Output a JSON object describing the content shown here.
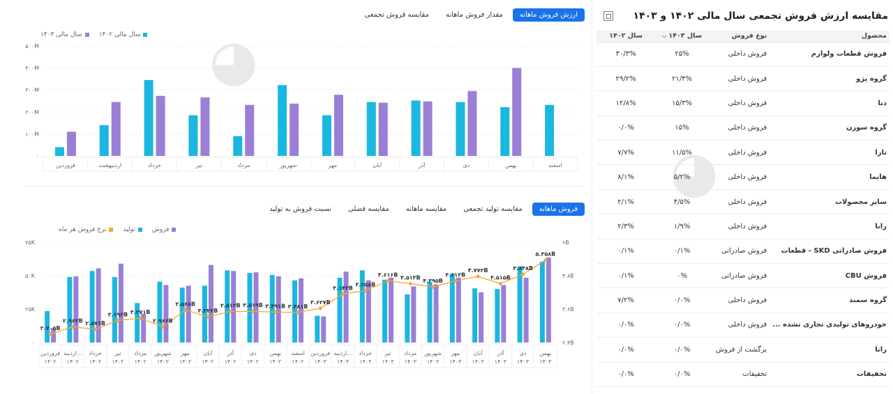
{
  "title": "مقایسه ارزش فروش تجمعی سال مالی ۱۴۰۲ و ۱۴۰۳",
  "top_tabs": [
    "ارزش فروش ماهانه",
    "مقدار فروش ماهانه",
    "مقایسه فروش تجمعی"
  ],
  "bottom_tabs": [
    "فروش ماهانه",
    "مقایسه تولید تجمعی",
    "مقایسه ماهانه",
    "مقایسه فصلی",
    "نسبت فروش به تولید"
  ],
  "table": {
    "headers": {
      "product": "محصول",
      "type": "نوع فروش",
      "y1403": "سال ۱۴۰۳",
      "y1402": "سال ۱۴۰۲"
    },
    "rows": [
      {
        "product": "فروش قطعات ولوازم",
        "type": "فروش داخلی",
        "y1403": "۲۵%",
        "y1402": "۳۰/۳%"
      },
      {
        "product": "گروه پژو",
        "type": "فروش داخلی",
        "y1403": "۲۱/۴%",
        "y1402": "۲۹/۲%"
      },
      {
        "product": "دنا",
        "type": "فروش داخلی",
        "y1403": "۱۵/۳%",
        "y1402": "۱۲/۸%"
      },
      {
        "product": "گروه سورن",
        "type": "فروش داخلی",
        "y1403": "۱۵%",
        "y1402": "۰/۰%"
      },
      {
        "product": "تارا",
        "type": "فروش داخلی",
        "y1403": "۱۱/۵%",
        "y1402": "۷/۷%"
      },
      {
        "product": "هایما",
        "type": "فروش داخلی",
        "y1403": "۵/۲%",
        "y1402": "۸/۱%"
      },
      {
        "product": "سایر محصولات",
        "type": "فروش داخلی",
        "y1403": "۴/۵%",
        "y1402": "۲/۱%"
      },
      {
        "product": "رانا",
        "type": "فروش داخلی",
        "y1403": "۱/۹%",
        "y1402": "۲/۳%"
      },
      {
        "product": "فروش صادراتی SKD - قطعات",
        "type": "فروش صادراتی",
        "y1403": "۰/۱%",
        "y1402": "۰/۱%"
      },
      {
        "product": "فروش CBU",
        "type": "فروش صادراتی",
        "y1403": "۰%",
        "y1402": "۰/۱%"
      },
      {
        "product": "گروه سمند",
        "type": "فروش داخلی",
        "y1403": "۰/۰%",
        "y1402": "۷/۲%"
      },
      {
        "product": "خودروهای تولیدی تجاری نشده ...",
        "type": "فروش داخلی",
        "y1403": "۰/۰%",
        "y1402": "۰/۰%"
      },
      {
        "product": "رانا",
        "type": "برگشت از فروش",
        "y1403": "۰/۰%",
        "y1402": "۰/۰%"
      },
      {
        "product": "تخفیفات",
        "type": "تخفیفات",
        "y1403": "۰/۰%",
        "y1402": "۰/۰%"
      }
    ]
  },
  "colors": {
    "cyan": "#1bb7e0",
    "purple": "#9b7fd6",
    "orange": "#f7a531",
    "tab_active": "#1a73e8"
  },
  "chart_data": [
    {
      "type": "bar",
      "legend": [
        "سال مالی ۱۴۰۲",
        "سال مالی ۱۴۰۳"
      ],
      "categories": [
        "فروردین",
        "اردیبهشت",
        "خرداد",
        "تیر",
        "مرداد",
        "شهریور",
        "مهر",
        "آبان",
        "آذر",
        "دی",
        "بهمن",
        "اسفند"
      ],
      "series": [
        {
          "name": "سال مالی ۱۴۰۲",
          "values": [
            40,
            140,
            345,
            185,
            90,
            322,
            185,
            245,
            252,
            245,
            222,
            232
          ]
        },
        {
          "name": "سال مالی ۱۴۰۳",
          "values": [
            110,
            245,
            273,
            266,
            232,
            238,
            278,
            242,
            248,
            295,
            400,
            null
          ]
        }
      ],
      "yticks": [
        "۰",
        "۱۰۰M",
        "۲۰۰M",
        "۳۰۰M",
        "۴۰۰M",
        "۵۰۰M"
      ],
      "ylim": [
        0,
        500
      ]
    },
    {
      "type": "bar",
      "legend": [
        "فروش",
        "تولید",
        "نرخ فروش هر ماه"
      ],
      "categories": [
        [
          "فروردین",
          "۱۴۰۲"
        ],
        [
          "اردیبه...",
          "۱۴۰۲"
        ],
        [
          "خرداد",
          "۱۴۰۲"
        ],
        [
          "تیر",
          "۱۴۰۲"
        ],
        [
          "مرداد",
          "۱۴۰۲"
        ],
        [
          "شهریور",
          "۱۴۰۲"
        ],
        [
          "مهر",
          "۱۴۰۲"
        ],
        [
          "آبان",
          "۱۴۰۲"
        ],
        [
          "آذر",
          "۱۴۰۲"
        ],
        [
          "دی",
          "۱۴۰۲"
        ],
        [
          "بهمن",
          "۱۴۰۲"
        ],
        [
          "اسفند",
          "۱۴۰۲"
        ],
        [
          "فروردین",
          "۱۴۰۳"
        ],
        [
          "اردیبه...",
          "۱۴۰۳"
        ],
        [
          "خرداد",
          "۱۴۰۳"
        ],
        [
          "تیر",
          "۱۴۰۳"
        ],
        [
          "مرداد",
          "۱۴۰۳"
        ],
        [
          "شهریور",
          "۱۴۰۳"
        ],
        [
          "مهر",
          "۱۴۰۳"
        ],
        [
          "آبان",
          "۱۴۰۳"
        ],
        [
          "آذر",
          "۱۴۰۳"
        ],
        [
          "دی",
          "۱۴۰۳"
        ],
        [
          "بهمن",
          "۱۴۰۳"
        ]
      ],
      "series": [
        {
          "name": "تولید",
          "values": [
            23500,
            49000,
            53500,
            49000,
            29500,
            45500,
            41000,
            42500,
            54000,
            52000,
            50500,
            46500,
            20000,
            48500,
            54000,
            47000,
            36000,
            45500,
            51500,
            40500,
            40000,
            57000,
            60500
          ]
        },
        {
          "name": "فروش",
          "values": [
            10500,
            49500,
            55500,
            59000,
            21500,
            43000,
            42500,
            58000,
            53500,
            52500,
            49500,
            48000,
            19500,
            53000,
            46500,
            48500,
            42000,
            43500,
            48500,
            37500,
            43000,
            48500,
            63500
          ]
        },
        {
          "name": "نرخ فروش هر ماه",
          "values": [
            2.705,
            2.962,
            2.871,
            3.192,
            3.271,
            2.966,
            3.568,
            3.322,
            3.513,
            3.519,
            3.491,
            3.481,
            3.627,
            4.143,
            4.258,
            4.616,
            4.513,
            4.395,
            4.613,
            4.772,
            4.515,
            4.848,
            5.358
          ]
        }
      ],
      "line_labels": [
        "۲.۷۰۵B",
        "۲.۹۶۲B",
        "۲.۸۷۱B",
        "۳.۱۹۲B",
        "۳.۲۷۱B",
        "۲.۹۶۶B",
        "۳.۵۶۸B",
        "۳.۳۲۲B",
        "۳.۵۱۳B",
        "۳.۵۱۹B",
        "۳.۴۹۱B",
        "۳.۴۸۱B",
        "۳.۶۲۷B",
        "۴.۱۴۳B",
        "۴.۲۵۸B",
        "۴.۶۱۶B",
        "۴.۵۱۳B",
        "۴.۳۹۵B",
        "۴.۶۱۳B",
        "۴.۷۷۲B",
        "۴.۵۱۵B",
        "۴.۸۴۸B",
        "۵.۳۵۸B"
      ],
      "yticks_left": [
        "۰",
        "۲۵K",
        "۵۰K",
        "۷۵K"
      ],
      "ylim_left": [
        0,
        75000
      ],
      "yticks_right": [
        "۲.۴B",
        "۳.۶B",
        "۴.۸B",
        "۶B"
      ],
      "ylim_right": [
        2.4,
        6
      ]
    }
  ]
}
